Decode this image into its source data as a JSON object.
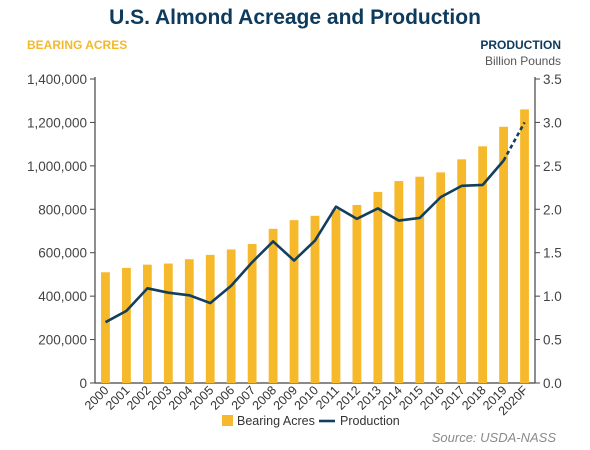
{
  "chart_data": {
    "type": "bar+line",
    "title": "U.S. Almond Acreage and Production",
    "left_axis": {
      "label": "BEARING ACRES",
      "ylim": [
        0,
        1400000
      ],
      "ticks": [
        "0",
        "200,000",
        "400,000",
        "600,000",
        "800,000",
        "1,000,000",
        "1,200,000",
        "1,400,000"
      ],
      "tick_values": [
        0,
        200000,
        400000,
        600000,
        800000,
        1000000,
        1200000,
        1400000
      ]
    },
    "right_axis": {
      "label": "PRODUCTION",
      "unit": "Billion Pounds",
      "ylim": [
        0,
        3.5
      ],
      "ticks": [
        "0.0",
        "0.5",
        "1.0",
        "1.5",
        "2.0",
        "2.5",
        "3.0",
        "3.5"
      ],
      "tick_values": [
        0,
        0.5,
        1.0,
        1.5,
        2.0,
        2.5,
        3.0,
        3.5
      ]
    },
    "categories": [
      "2000",
      "2001",
      "2002",
      "2003",
      "2004",
      "2005",
      "2006",
      "2007",
      "2008",
      "2009",
      "2010",
      "2011",
      "2012",
      "2013",
      "2014",
      "2015",
      "2016",
      "2017",
      "2018",
      "2019",
      "2020F"
    ],
    "series": [
      {
        "name": "Bearing Acres",
        "type": "bar",
        "axis": "left",
        "color": "#f6b92c",
        "values": [
          510000,
          530000,
          545000,
          550000,
          570000,
          590000,
          615000,
          640000,
          710000,
          750000,
          770000,
          800000,
          820000,
          880000,
          930000,
          950000,
          970000,
          1030000,
          1090000,
          1180000,
          1260000
        ]
      },
      {
        "name": "Production",
        "type": "line",
        "axis": "right",
        "color": "#123f60",
        "forecast_from_index": 19,
        "values": [
          0.7,
          0.83,
          1.09,
          1.04,
          1.01,
          0.92,
          1.12,
          1.39,
          1.63,
          1.41,
          1.64,
          2.03,
          1.89,
          2.01,
          1.87,
          1.9,
          2.14,
          2.27,
          2.28,
          2.56,
          3.0
        ]
      }
    ],
    "legend": {
      "placement": "bottom-center",
      "items": [
        "Bearing Acres",
        "Production"
      ]
    },
    "grid": false,
    "source": "Source: USDA-NASS"
  }
}
